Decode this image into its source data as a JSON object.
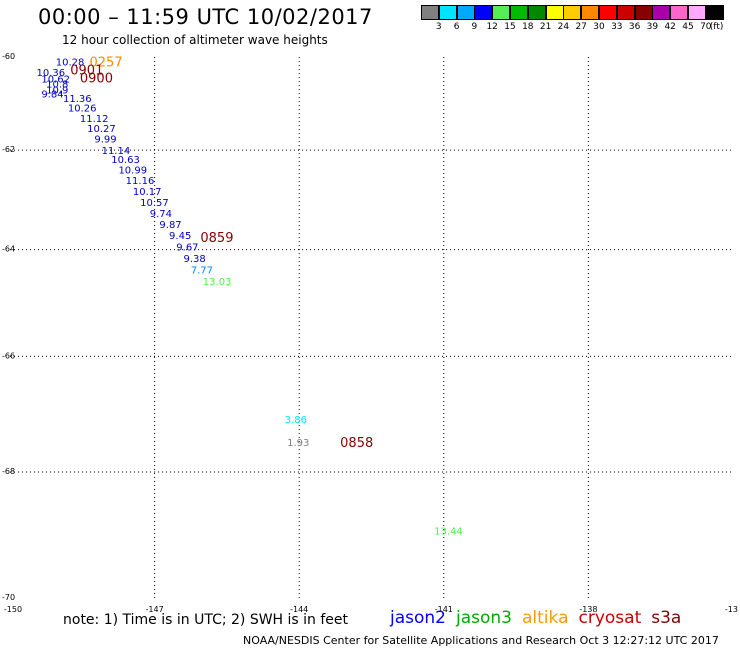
{
  "header": {
    "title": "00:00 – 11:59 UTC 10/02/2017",
    "subtitle": "12 hour collection of altimeter wave heights"
  },
  "scale": {
    "colors": [
      "#808080",
      "#00e5ff",
      "#00aaff",
      "#0000ff",
      "#55ee55",
      "#00bb00",
      "#008800",
      "#ffff00",
      "#ffcc00",
      "#ff8800",
      "#ff0000",
      "#cc0000",
      "#880000",
      "#aa00aa",
      "#ff66cc",
      "#ffaaff",
      "#000000"
    ],
    "labels": [
      "3",
      "6",
      "9",
      "12",
      "15",
      "18",
      "21",
      "24",
      "27",
      "30",
      "33",
      "36",
      "39",
      "42",
      "45",
      "70"
    ],
    "unit": "(ft)"
  },
  "chart_data": {
    "type": "scatter",
    "xlim": [
      -150,
      -135
    ],
    "ylim": [
      -70,
      -60
    ],
    "x_ticks": [
      -147,
      -144,
      -141,
      -138
    ],
    "y_ticks": [
      -62,
      -64,
      -66,
      -68
    ],
    "x_tick_labels": [
      "-150",
      "-147",
      "-144",
      "-141",
      "-138",
      "-13"
    ],
    "y_tick_labels": [
      "-60",
      "-62",
      "-64",
      "-66",
      "-68",
      "-70"
    ],
    "grid": true,
    "points": [
      {
        "x": -149.05,
        "y": -60.1,
        "label": "10.28",
        "color": "#0000cc"
      },
      {
        "x": -149.45,
        "y": -60.33,
        "label": "10.36",
        "color": "#0000cc"
      },
      {
        "x": -149.35,
        "y": -60.47,
        "label": "10.62",
        "color": "#0000cc"
      },
      {
        "x": -149.25,
        "y": -60.58,
        "label": "10.8",
        "color": "#0000cc"
      },
      {
        "x": -149.25,
        "y": -60.71,
        "label": "10.9",
        "color": "#0000cc"
      },
      {
        "x": -149.35,
        "y": -60.8,
        "label": "9.84",
        "color": "#0000cc"
      },
      {
        "x": -148.9,
        "y": -60.9,
        "label": "11.36",
        "color": "#0000cc"
      },
      {
        "x": -148.8,
        "y": -61.1,
        "label": "10.26",
        "color": "#0000cc"
      },
      {
        "x": -148.55,
        "y": -61.32,
        "label": "11.12",
        "color": "#0000cc"
      },
      {
        "x": -148.4,
        "y": -61.54,
        "label": "10.27",
        "color": "#0000cc"
      },
      {
        "x": -148.25,
        "y": -61.76,
        "label": "9.99",
        "color": "#0000cc"
      },
      {
        "x": -148.1,
        "y": -62.0,
        "label": "11.14",
        "color": "#0000cc"
      },
      {
        "x": -147.9,
        "y": -62.18,
        "label": "10.63",
        "color": "#0000cc"
      },
      {
        "x": -147.75,
        "y": -62.4,
        "label": "10.99",
        "color": "#0000cc"
      },
      {
        "x": -147.6,
        "y": -62.62,
        "label": "11.16",
        "color": "#0000cc"
      },
      {
        "x": -147.45,
        "y": -62.84,
        "label": "10.17",
        "color": "#0000cc"
      },
      {
        "x": -147.3,
        "y": -63.06,
        "label": "10.57",
        "color": "#0000cc"
      },
      {
        "x": -147.1,
        "y": -63.28,
        "label": "9.74",
        "color": "#0000cc"
      },
      {
        "x": -146.9,
        "y": -63.5,
        "label": "9.87",
        "color": "#0000cc"
      },
      {
        "x": -146.7,
        "y": -63.72,
        "label": "9.45",
        "color": "#0000cc"
      },
      {
        "x": -146.55,
        "y": -63.94,
        "label": "9.67",
        "color": "#0000cc"
      },
      {
        "x": -146.4,
        "y": -64.16,
        "label": "9.38",
        "color": "#0000cc"
      },
      {
        "x": -146.25,
        "y": -64.38,
        "label": "7.77",
        "color": "#0088ff"
      },
      {
        "x": -146.0,
        "y": -64.6,
        "label": "13.03",
        "color": "#55ee55"
      },
      {
        "x": -144.3,
        "y": -67.1,
        "label": "3.86",
        "color": "#00e5ff"
      },
      {
        "x": -144.25,
        "y": -67.5,
        "label": "1.93",
        "color": "#808080"
      },
      {
        "x": -141.2,
        "y": -68.95,
        "label": "13.44",
        "color": "#55ee55"
      }
    ],
    "time_labels": [
      {
        "x": -148.35,
        "y": -60.1,
        "label": "0257",
        "color": "#ff8800"
      },
      {
        "x": -148.75,
        "y": -60.28,
        "label": "0901",
        "color": "#880000"
      },
      {
        "x": -148.55,
        "y": -60.45,
        "label": "0900",
        "color": "#880000"
      },
      {
        "x": -146.05,
        "y": -63.75,
        "label": "0859",
        "color": "#880000"
      },
      {
        "x": -143.15,
        "y": -67.5,
        "label": "0858",
        "color": "#880000"
      }
    ]
  },
  "footer": {
    "note": "note: 1) Time is in UTC; 2) SWH is in feet",
    "sats": [
      {
        "label": "jason2",
        "color": "#0000ff"
      },
      {
        "label": "jason3",
        "color": "#00aa00"
      },
      {
        "label": "altika",
        "color": "#ff9900"
      },
      {
        "label": "cryosat",
        "color": "#cc0000"
      },
      {
        "label": "s3a",
        "color": "#880000"
      }
    ],
    "credit": "NOAA/NESDIS Center for Satellite Applications and Research    Oct  3 12:27:12 UTC 2017"
  }
}
